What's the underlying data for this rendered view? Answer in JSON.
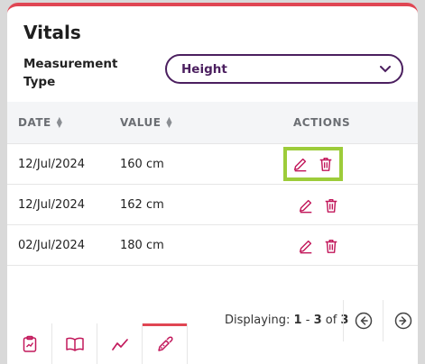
{
  "title": "Vitals",
  "filter": {
    "label": "Measurement Type",
    "selected": "Height"
  },
  "table": {
    "headers": {
      "date": "DATE",
      "value": "VALUE",
      "actions": "ACTIONS"
    },
    "rows": [
      {
        "date": "12/Jul/2024",
        "value": "160 cm"
      },
      {
        "date": "12/Jul/2024",
        "value": "162 cm"
      },
      {
        "date": "02/Jul/2024",
        "value": "180 cm"
      }
    ]
  },
  "pagination": {
    "prefix": "Displaying: ",
    "range_start": "1",
    "dash": " - ",
    "range_end": "3",
    "of": " of ",
    "total": "3"
  },
  "tabs": [
    {
      "icon": "clipboard-chart-icon"
    },
    {
      "icon": "book-icon"
    },
    {
      "icon": "trend-line-icon"
    },
    {
      "icon": "dropper-icon",
      "active": true
    }
  ],
  "colors": {
    "accent": "#c2185b",
    "select_border": "#4b1f5f",
    "top_bar": "#e04653",
    "focus_ring": "#9dcc3a"
  }
}
